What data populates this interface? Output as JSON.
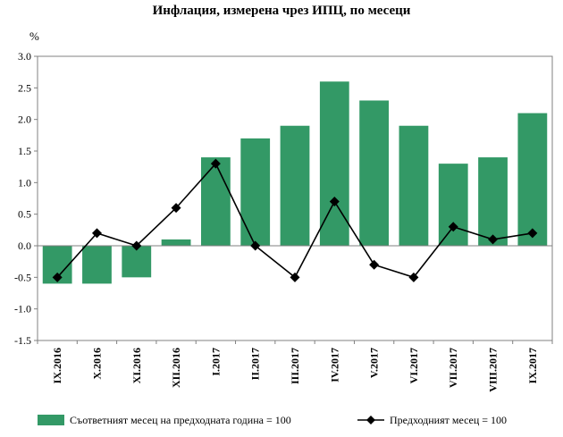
{
  "chart_data": {
    "type": "bar",
    "title": "Инфлация, измерена чрез ИПЦ, по месеци",
    "ylabel": "%",
    "ylim": [
      -1.5,
      3.0
    ],
    "yticks": [
      "3.0",
      "2.5",
      "2.0",
      "1.5",
      "1.0",
      "0.5",
      "0.0",
      "-0.5",
      "-1.0",
      "-1.5"
    ],
    "categories": [
      "IX.2016",
      "X.2016",
      "XI.2016",
      "XII.2016",
      "I.2017",
      "II.2017",
      "III.2017",
      "IV.2017",
      "V.2017",
      "VI.2017",
      "VII.2017",
      "VIII.2017",
      "IX.2017"
    ],
    "series": [
      {
        "name": "Съответният месец на предходната година = 100",
        "kind": "bar",
        "color": "#339966",
        "values": [
          -0.6,
          -0.6,
          -0.5,
          0.1,
          1.4,
          1.7,
          1.9,
          2.6,
          2.3,
          1.9,
          1.3,
          1.4,
          2.1
        ]
      },
      {
        "name": "Предходният месец = 100",
        "kind": "line",
        "color": "#000000",
        "values": [
          -0.5,
          0.2,
          0.0,
          0.6,
          1.3,
          0.0,
          -0.5,
          0.7,
          -0.3,
          -0.5,
          0.3,
          0.1,
          0.2
        ]
      }
    ],
    "legend_position": "bottom",
    "grid": false
  }
}
